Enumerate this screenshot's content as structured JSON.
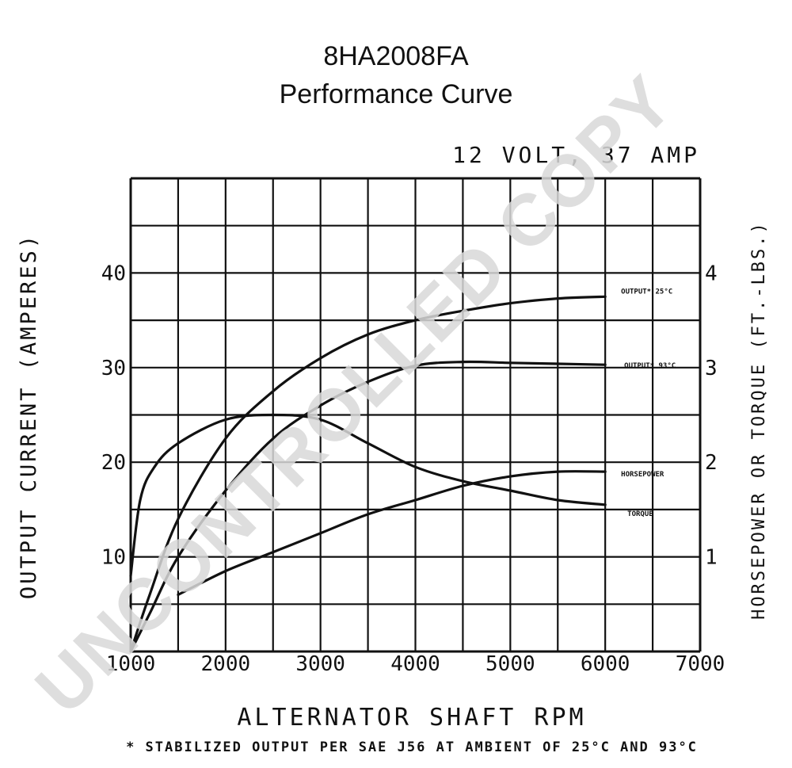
{
  "header": {
    "model": "8HA2008FA",
    "subtitle": "Performance Curve"
  },
  "watermark": "UNCONTROLLED COPY",
  "chart_data": {
    "type": "line",
    "title": "12 VOLT, 37 AMP",
    "xlabel": "ALTERNATOR SHAFT RPM",
    "ylabel_left": "OUTPUT CURRENT (AMPERES)",
    "ylabel_right": "HORSEPOWER OR TORQUE (FT.-LBS.)",
    "footnote": "* STABILIZED OUTPUT PER SAE J56 AT AMBIENT OF 25°C AND 93°C",
    "xlim": [
      1000,
      7000
    ],
    "ylim_left": [
      0,
      50
    ],
    "ylim_right": [
      0,
      5
    ],
    "grid": true,
    "x_ticks": [
      1000,
      2000,
      3000,
      4000,
      5000,
      6000,
      7000
    ],
    "x_tick_labels": [
      "1000",
      "2000",
      "3000",
      "4000",
      "5000",
      "6000",
      "7000"
    ],
    "y_left_ticks": [
      10,
      20,
      30,
      40
    ],
    "y_left_tick_labels": [
      "10",
      "20",
      "30",
      "40"
    ],
    "y_right_ticks": [
      1,
      2,
      3,
      4
    ],
    "y_right_tick_labels": [
      "1",
      "2",
      "3",
      "4"
    ],
    "series": [
      {
        "name": "OUTPUT* 25°C",
        "axis": "left",
        "x": [
          1000,
          1200,
          1500,
          2000,
          2500,
          3000,
          3500,
          4000,
          4500,
          5000,
          5500,
          6000
        ],
        "y": [
          0,
          6,
          14,
          22.5,
          27.5,
          31,
          33.5,
          35,
          36,
          36.8,
          37.3,
          37.5
        ]
      },
      {
        "name": "OUTPUT* 93°C",
        "axis": "left",
        "x": [
          1000,
          1200,
          1500,
          2000,
          2500,
          3000,
          3500,
          4000,
          4500,
          5000,
          5500,
          6000
        ],
        "y": [
          0,
          4,
          10,
          17,
          22.5,
          26,
          28.5,
          30.2,
          30.6,
          30.5,
          30.4,
          30.3
        ]
      },
      {
        "name": "HORSEPOWER",
        "axis": "right",
        "x": [
          1500,
          2000,
          2500,
          3000,
          3500,
          4000,
          4500,
          5000,
          5500,
          6000
        ],
        "y": [
          0.6,
          0.85,
          1.05,
          1.25,
          1.45,
          1.6,
          1.75,
          1.85,
          1.9,
          1.9
        ]
      },
      {
        "name": "TORQUE",
        "axis": "right",
        "x": [
          1000,
          1100,
          1250,
          1500,
          2000,
          2500,
          3000,
          3500,
          4000,
          4500,
          5000,
          5500,
          6000
        ],
        "y": [
          0.8,
          1.6,
          1.95,
          2.2,
          2.45,
          2.5,
          2.45,
          2.2,
          1.95,
          1.8,
          1.7,
          1.6,
          1.55
        ]
      }
    ]
  }
}
